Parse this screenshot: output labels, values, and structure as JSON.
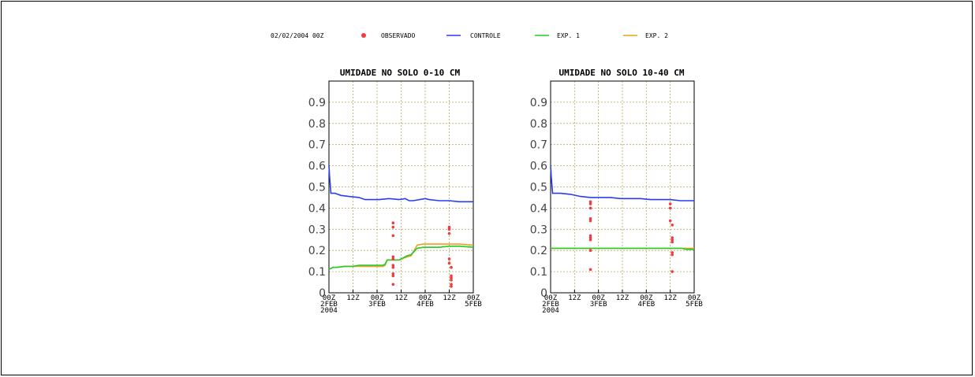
{
  "header": {
    "date": "02/02/2004 00Z",
    "legend": [
      {
        "label": "OBSERVADO",
        "kind": "marker",
        "color": "#f03c3c"
      },
      {
        "label": "CONTROLE",
        "kind": "line",
        "color": "#2a3cf0"
      },
      {
        "label": "EXP. 1",
        "kind": "line",
        "color": "#22cc22"
      },
      {
        "label": "EXP. 2",
        "kind": "line",
        "color": "#e8a020"
      }
    ]
  },
  "colors": {
    "grid": "#b8a860",
    "axis": "#000000"
  },
  "chart_data": [
    {
      "type": "line",
      "title": "UMIDADE NO SOLO 0-10 CM",
      "xlabel": "",
      "ylabel": "",
      "xlim": [
        0,
        72
      ],
      "ylim": [
        0,
        1.0
      ],
      "grid": true,
      "y_ticks": [
        0,
        0.1,
        0.2,
        0.3,
        0.4,
        0.5,
        0.6,
        0.7,
        0.8,
        0.9
      ],
      "y_tick_labels": [
        "0",
        "0.1",
        "0.2",
        "0.3",
        "0.4",
        "0.5",
        "0.6",
        "0.7",
        "0.8",
        "0.9"
      ],
      "x_ticks": [
        0,
        12,
        24,
        36,
        48,
        60,
        72
      ],
      "x_tick_labels": [
        [
          "00Z",
          "2FEB",
          "2004"
        ],
        [
          "12Z"
        ],
        [
          "00Z",
          "3FEB"
        ],
        [
          "12Z"
        ],
        [
          "00Z",
          "4FEB"
        ],
        [
          "12Z"
        ],
        [
          "00Z",
          "5FEB"
        ]
      ],
      "series": [
        {
          "name": "CONTROLE",
          "color": "#2a3cf0",
          "x": [
            0,
            0.3,
            1,
            3,
            6,
            10,
            15,
            18,
            20,
            25,
            30,
            35,
            38,
            40,
            42,
            48,
            50,
            55,
            60,
            65,
            72
          ],
          "y": [
            0.6,
            0.55,
            0.47,
            0.47,
            0.46,
            0.455,
            0.45,
            0.44,
            0.44,
            0.44,
            0.445,
            0.44,
            0.445,
            0.435,
            0.435,
            0.445,
            0.44,
            0.435,
            0.435,
            0.43,
            0.43
          ]
        },
        {
          "name": "EXP. 1",
          "color": "#22cc22",
          "x": [
            0,
            2,
            4,
            8,
            12,
            15,
            19,
            24,
            27,
            28,
            29,
            34,
            35,
            39,
            41,
            44,
            47,
            50,
            55,
            60,
            65,
            72
          ],
          "y": [
            0.11,
            0.12,
            0.12,
            0.125,
            0.125,
            0.13,
            0.13,
            0.13,
            0.13,
            0.135,
            0.155,
            0.155,
            0.155,
            0.175,
            0.18,
            0.21,
            0.215,
            0.215,
            0.215,
            0.22,
            0.22,
            0.215
          ]
        },
        {
          "name": "EXP. 2",
          "color": "#e8a020",
          "x": [
            0,
            2,
            4,
            8,
            12,
            15,
            19,
            24,
            27,
            28,
            29,
            34,
            35,
            39,
            41,
            44,
            47,
            50,
            55,
            60,
            65,
            72
          ],
          "y": [
            0.11,
            0.12,
            0.12,
            0.125,
            0.125,
            0.125,
            0.125,
            0.125,
            0.125,
            0.13,
            0.155,
            0.155,
            0.155,
            0.17,
            0.175,
            0.225,
            0.23,
            0.23,
            0.23,
            0.23,
            0.23,
            0.225
          ]
        }
      ],
      "observed": {
        "name": "OBSERVADO",
        "color": "#f03c3c",
        "x": [
          32,
          32,
          32,
          32,
          32,
          32,
          32,
          32,
          32,
          32,
          60,
          60,
          60,
          60,
          60,
          61,
          61,
          61,
          61,
          61,
          61
        ],
        "y": [
          0.33,
          0.31,
          0.27,
          0.17,
          0.16,
          0.13,
          0.12,
          0.09,
          0.08,
          0.04,
          0.31,
          0.3,
          0.28,
          0.16,
          0.14,
          0.12,
          0.08,
          0.07,
          0.06,
          0.04,
          0.03
        ]
      }
    },
    {
      "type": "line",
      "title": "UMIDADE NO SOLO 10-40 CM",
      "xlabel": "",
      "ylabel": "",
      "xlim": [
        0,
        72
      ],
      "ylim": [
        0,
        1.0
      ],
      "grid": true,
      "y_ticks": [
        0,
        0.1,
        0.2,
        0.3,
        0.4,
        0.5,
        0.6,
        0.7,
        0.8,
        0.9
      ],
      "y_tick_labels": [
        "0",
        "0.1",
        "0.2",
        "0.3",
        "0.4",
        "0.5",
        "0.6",
        "0.7",
        "0.8",
        "0.9"
      ],
      "x_ticks": [
        0,
        12,
        24,
        36,
        48,
        60,
        72
      ],
      "x_tick_labels": [
        [
          "00Z",
          "2FEB",
          "2004"
        ],
        [
          "12Z"
        ],
        [
          "00Z",
          "3FEB"
        ],
        [
          "12Z"
        ],
        [
          "00Z",
          "4FEB"
        ],
        [
          "12Z"
        ],
        [
          "00Z",
          "5FEB"
        ]
      ],
      "series": [
        {
          "name": "CONTROLE",
          "color": "#2a3cf0",
          "x": [
            0,
            0.3,
            1,
            5,
            10,
            15,
            20,
            25,
            30,
            35,
            40,
            45,
            50,
            55,
            60,
            65,
            72
          ],
          "y": [
            0.6,
            0.55,
            0.47,
            0.47,
            0.465,
            0.455,
            0.45,
            0.45,
            0.45,
            0.445,
            0.445,
            0.445,
            0.44,
            0.44,
            0.44,
            0.435,
            0.435
          ]
        },
        {
          "name": "EXP. 1",
          "color": "#22cc22",
          "x": [
            0,
            20,
            40,
            60,
            66,
            68,
            72
          ],
          "y": [
            0.21,
            0.21,
            0.21,
            0.21,
            0.21,
            0.205,
            0.205
          ]
        },
        {
          "name": "EXP. 2",
          "color": "#e8a020",
          "x": [
            0,
            20,
            40,
            60,
            66,
            68,
            72
          ],
          "y": [
            0.21,
            0.21,
            0.21,
            0.21,
            0.21,
            0.21,
            0.21
          ]
        }
      ],
      "observed": {
        "name": "OBSERVADO",
        "color": "#f03c3c",
        "x": [
          20,
          20,
          20,
          20,
          20,
          20,
          20,
          20,
          20,
          20,
          60,
          60,
          60,
          61,
          61,
          61,
          61,
          61,
          61,
          61
        ],
        "y": [
          0.43,
          0.42,
          0.4,
          0.35,
          0.34,
          0.27,
          0.26,
          0.25,
          0.2,
          0.11,
          0.42,
          0.4,
          0.34,
          0.32,
          0.26,
          0.25,
          0.24,
          0.19,
          0.18,
          0.1
        ]
      }
    }
  ]
}
